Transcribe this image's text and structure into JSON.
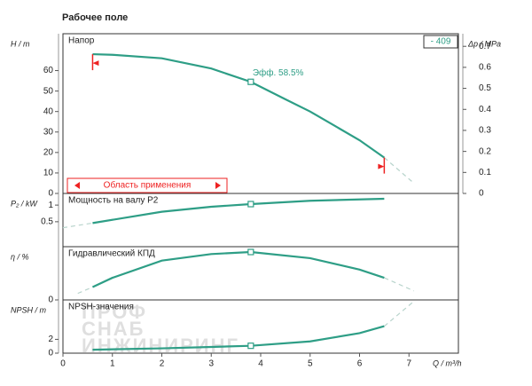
{
  "chart_data": [
    {
      "type": "line",
      "title": "Рабочее поле",
      "ylabel": "H / m",
      "y2label": "Δp / MPa",
      "curve_label": "Напор",
      "efficiency_label": "Эфф. 58.5%",
      "badge": "- 409",
      "range_label": "Область применения",
      "xlim": [
        0,
        8
      ],
      "ylim": [
        0,
        78
      ],
      "yticks": [
        0,
        10,
        20,
        30,
        40,
        50,
        60
      ],
      "y2lim": [
        0,
        0.76
      ],
      "y2ticks": [
        0,
        0.1,
        0.2,
        0.3,
        0.4,
        0.5,
        0.6,
        0.7
      ],
      "series": [
        {
          "color": "#2e9e86",
          "x": [
            0.6,
            1,
            2,
            3,
            3.8,
            4.5,
            5,
            5.5,
            6,
            6.5
          ],
          "values": [
            68,
            67.7,
            66,
            61,
            54.5,
            46,
            40,
            33,
            26,
            17.5
          ]
        },
        {
          "color": "#b8d4cc",
          "dash": true,
          "x": [
            6.5,
            7.1
          ],
          "values": [
            17.5,
            5
          ]
        }
      ],
      "duty_point": {
        "x": 3.8,
        "y": 54.5
      }
    },
    {
      "type": "line",
      "ylabel": "P₂ / kW",
      "curve_label": "Мощность на валу P2",
      "xlim": [
        0,
        8
      ],
      "ylim": [
        -0.25,
        1.35
      ],
      "yticks": [
        0.5,
        1
      ],
      "series": [
        {
          "color": "#b8d4cc",
          "dash": true,
          "x": [
            0,
            0.6
          ],
          "values": [
            0.32,
            0.46
          ]
        },
        {
          "color": "#2e9e86",
          "x": [
            0.6,
            2,
            3,
            3.8,
            5,
            6.5
          ],
          "values": [
            0.46,
            0.8,
            0.95,
            1.03,
            1.13,
            1.19
          ]
        }
      ],
      "duty_point": {
        "x": 3.8,
        "y": 1.03
      }
    },
    {
      "type": "line",
      "ylabel": "η / %",
      "curve_label": "Гидравлический КПД",
      "xlim": [
        0,
        8
      ],
      "ylim": [
        0,
        65
      ],
      "yticks": [
        0
      ],
      "series": [
        {
          "color": "#b8d4cc",
          "dash": true,
          "x": [
            0.3,
            0.6
          ],
          "values": [
            8,
            15.7
          ]
        },
        {
          "color": "#2e9e86",
          "x": [
            0.6,
            1,
            2,
            3,
            3.8,
            5,
            6,
            6.5
          ],
          "values": [
            15.7,
            27,
            48,
            56,
            58.5,
            51,
            37,
            27
          ]
        },
        {
          "color": "#b8d4cc",
          "dash": true,
          "x": [
            6.5,
            7.1
          ],
          "values": [
            27,
            11
          ]
        }
      ],
      "duty_point": {
        "x": 3.8,
        "y": 58.5
      }
    },
    {
      "type": "line",
      "ylabel": "NPSH / m",
      "curve_label": "NPSH-значения",
      "xlabel": "Q / m³/h",
      "xlim": [
        0,
        8
      ],
      "ylim": [
        0,
        7.7
      ],
      "yticks": [
        0,
        2
      ],
      "xticks": [
        0,
        1,
        2,
        3,
        4,
        5,
        6,
        7
      ],
      "watermark": [
        "ПРОФ",
        "СНАБ",
        "ИНЖИНИРИНГ"
      ],
      "series": [
        {
          "color": "#2e9e86",
          "x": [
            0.6,
            2,
            3,
            3.8,
            5,
            6,
            6.5
          ],
          "values": [
            0.5,
            0.7,
            0.9,
            1.07,
            1.7,
            2.9,
            3.9
          ]
        },
        {
          "color": "#b8d4cc",
          "dash": true,
          "x": [
            6.5,
            7.1
          ],
          "values": [
            3.9,
            7.5
          ]
        }
      ],
      "duty_point": {
        "x": 3.8,
        "y": 1.07
      }
    }
  ]
}
